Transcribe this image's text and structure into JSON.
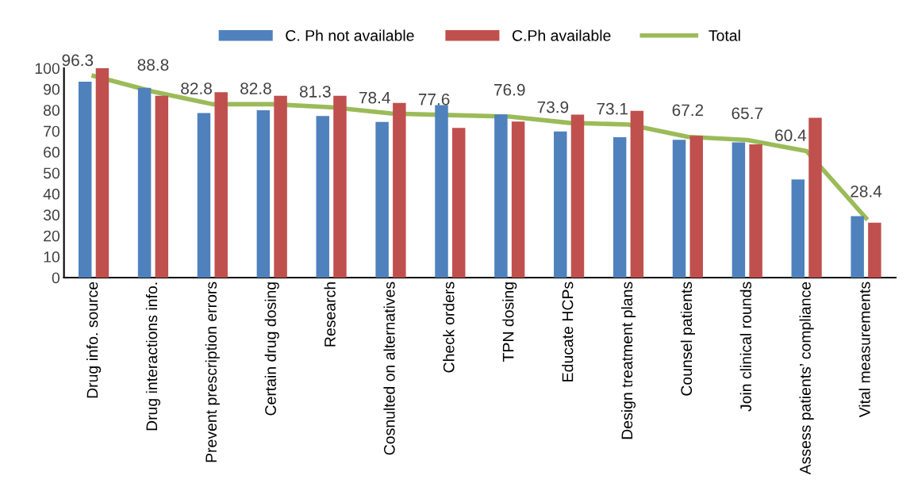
{
  "chart_data": {
    "type": "bar",
    "categories": [
      "Drug info. source",
      "Drug interactions info.",
      "Prevent prescription errors",
      "Certain drug dosing",
      "Research",
      "Cosnulted on alternatives",
      "Check orders",
      "TPN dosing",
      "Educate HCPs",
      "Design treatment plans",
      "Counsel patients",
      "Join clinical rounds",
      "Assess patients’ compliance",
      "Vital measurements"
    ],
    "series": [
      {
        "name": "C. Ph not available",
        "color": "#4f81bd",
        "values": [
          93.5,
          90.6,
          78.6,
          79.9,
          77.2,
          74.3,
          82.4,
          77.9,
          69.8,
          67.0,
          65.8,
          64.6,
          46.9,
          29.3
        ]
      },
      {
        "name": "C.Ph available",
        "color": "#c0504d",
        "values": [
          100,
          86.8,
          88.5,
          86.8,
          86.8,
          83.4,
          71.5,
          74.5,
          77.8,
          79.6,
          67.7,
          63.6,
          76.3,
          26.2
        ]
      },
      {
        "name": "Total",
        "type": "line",
        "color": "#9bbb59",
        "values": [
          96.3,
          88.8,
          82.8,
          82.8,
          81.3,
          78.4,
          77.6,
          76.9,
          73.9,
          73.1,
          67.2,
          65.7,
          60.4,
          28.4
        ],
        "data_labels": true
      }
    ],
    "ylim": [
      0,
      100
    ],
    "yticks": [
      0,
      10,
      20,
      30,
      40,
      50,
      60,
      70,
      80,
      90,
      100
    ],
    "grid": false,
    "legend": "top",
    "marker": "none"
  }
}
